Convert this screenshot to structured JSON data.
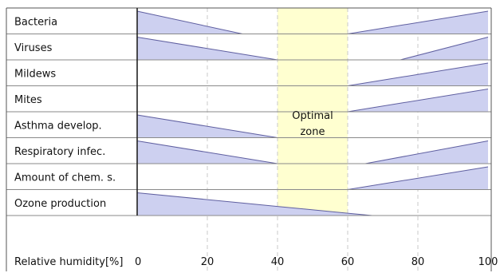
{
  "chart_data": {
    "type": "area",
    "xlabel": "Relative humidity[%]",
    "xlim": [
      0,
      100
    ],
    "x_ticks": [
      0,
      20,
      40,
      60,
      80,
      100
    ],
    "grid": true,
    "optimal_zone": {
      "label_line1": "Optimal",
      "label_line2": "zone",
      "range": [
        40,
        60
      ],
      "color": "#ffffd0"
    },
    "series_color": "#cdd0f0",
    "series_edge": "#5f5fa0",
    "rows": [
      {
        "name": "Bacteria",
        "segments": [
          {
            "x": [
              0,
              30
            ],
            "y": [
              1,
              0
            ]
          },
          {
            "x": [
              60,
              100
            ],
            "y": [
              0,
              1
            ]
          }
        ]
      },
      {
        "name": "Viruses",
        "segments": [
          {
            "x": [
              0,
              40
            ],
            "y": [
              1,
              0
            ]
          },
          {
            "x": [
              75,
              100
            ],
            "y": [
              0,
              1
            ]
          }
        ]
      },
      {
        "name": "Mildews",
        "segments": [
          {
            "x": [
              60,
              100
            ],
            "y": [
              0,
              1
            ]
          }
        ]
      },
      {
        "name": "Mites",
        "segments": [
          {
            "x": [
              60,
              100
            ],
            "y": [
              0,
              1
            ]
          }
        ]
      },
      {
        "name": "Asthma develop.",
        "segments": [
          {
            "x": [
              0,
              40
            ],
            "y": [
              1,
              0
            ]
          }
        ]
      },
      {
        "name": "Respiratory infec.",
        "segments": [
          {
            "x": [
              0,
              40
            ],
            "y": [
              1,
              0
            ]
          },
          {
            "x": [
              65,
              100
            ],
            "y": [
              0,
              1
            ]
          }
        ]
      },
      {
        "name": "Amount of chem. s.",
        "segments": [
          {
            "x": [
              60,
              100
            ],
            "y": [
              0,
              1
            ]
          }
        ]
      },
      {
        "name": "Ozone production",
        "segments": [
          {
            "x": [
              0,
              40
            ],
            "y": [
              1,
              0.4
            ]
          },
          {
            "x": [
              40,
              60
            ],
            "y": [
              0.4,
              0.1
            ]
          },
          {
            "x": [
              60,
              67
            ],
            "y": [
              0.1,
              0
            ]
          }
        ]
      }
    ]
  }
}
